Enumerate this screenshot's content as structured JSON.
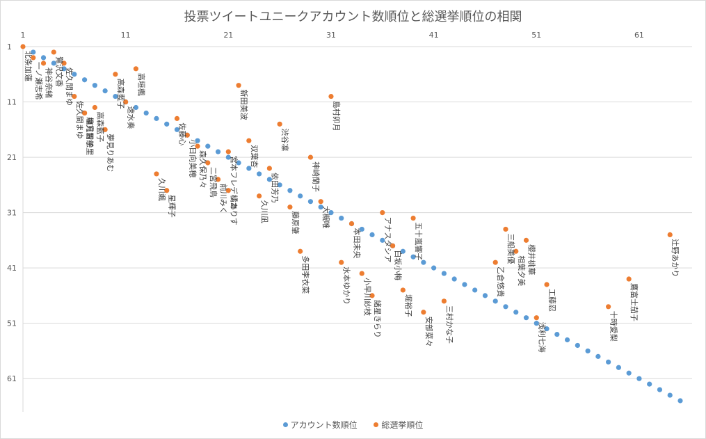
{
  "chart_data": {
    "type": "scatter",
    "title": "投票ツイートユニークアカウント数順位と総選挙順位の相関",
    "xlabel": "",
    "ylabel": "",
    "xlim": [
      1,
      65
    ],
    "ylim": [
      1,
      65
    ],
    "x_ticks": [
      1,
      11,
      21,
      31,
      41,
      51,
      61
    ],
    "y_ticks": [
      1,
      11,
      21,
      31,
      41,
      51,
      61
    ],
    "y_reversed": true,
    "x_axis_position": "top",
    "grid": "horizontal",
    "legend_position": "bottom",
    "colors": {
      "account": "#5b9bd5",
      "election": "#ed7d31"
    },
    "series": [
      {
        "name": "アカウント数順位",
        "points": [
          [
            2,
            2
          ],
          [
            3,
            3
          ],
          [
            4,
            4
          ],
          [
            5,
            5
          ],
          [
            6,
            6
          ],
          [
            7,
            7
          ],
          [
            8,
            8
          ],
          [
            9,
            9
          ],
          [
            10,
            10
          ],
          [
            11,
            11
          ],
          [
            12,
            12
          ],
          [
            13,
            13
          ],
          [
            14,
            14
          ],
          [
            15,
            15
          ],
          [
            16,
            16
          ],
          [
            17,
            17
          ],
          [
            18,
            18
          ],
          [
            19,
            19
          ],
          [
            20,
            20
          ],
          [
            21,
            21
          ],
          [
            22,
            22
          ],
          [
            23,
            23
          ],
          [
            24,
            24
          ],
          [
            25,
            25
          ],
          [
            26,
            26
          ],
          [
            27,
            27
          ],
          [
            28,
            28
          ],
          [
            29,
            29
          ],
          [
            30,
            30
          ],
          [
            31,
            31
          ],
          [
            32,
            32
          ],
          [
            33,
            33
          ],
          [
            34,
            34
          ],
          [
            35,
            35
          ],
          [
            36,
            36
          ],
          [
            37,
            37
          ],
          [
            38,
            38
          ],
          [
            39,
            39
          ],
          [
            40,
            40
          ],
          [
            41,
            41
          ],
          [
            42,
            42
          ],
          [
            43,
            43
          ],
          [
            44,
            44
          ],
          [
            45,
            45
          ],
          [
            46,
            46
          ],
          [
            47,
            47
          ],
          [
            48,
            48
          ],
          [
            49,
            49
          ],
          [
            50,
            50
          ],
          [
            51,
            51
          ],
          [
            52,
            52
          ],
          [
            53,
            53
          ],
          [
            54,
            54
          ],
          [
            55,
            55
          ],
          [
            56,
            56
          ],
          [
            57,
            57
          ],
          [
            58,
            58
          ],
          [
            59,
            59
          ],
          [
            60,
            60
          ],
          [
            61,
            61
          ],
          [
            62,
            62
          ],
          [
            63,
            63
          ],
          [
            64,
            64
          ],
          [
            65,
            65
          ]
        ]
      },
      {
        "name": "総選挙順位",
        "points": [
          {
            "x": 1,
            "y": 1,
            "label": "北条加蓮"
          },
          {
            "x": 2,
            "y": 3,
            "label": "一ノ瀬志希"
          },
          {
            "x": 3,
            "y": 4,
            "label": "神谷奈緒"
          },
          {
            "x": 4,
            "y": 2,
            "label": "鷺沢文香"
          },
          {
            "x": 5,
            "y": 4,
            "label": "佐久間まゆ"
          },
          {
            "x": 6,
            "y": 10,
            "label": "佐久間まゆ"
          },
          {
            "x": 7,
            "y": 13,
            "label": "緒方智絵里"
          },
          {
            "x": 7,
            "y": 13,
            "label": "塩見周子"
          },
          {
            "x": 8,
            "y": 12,
            "label": "高森藍子"
          },
          {
            "x": 9,
            "y": 16,
            "label": "夢見りあむ"
          },
          {
            "x": 10,
            "y": 6,
            "label": "高森藍子"
          },
          {
            "x": 11,
            "y": 11,
            "label": "速水奏"
          },
          {
            "x": 12,
            "y": 5,
            "label": "高垣楓"
          },
          {
            "x": 14,
            "y": 24,
            "label": "久川颯"
          },
          {
            "x": 15,
            "y": 27,
            "label": "星輝子"
          },
          {
            "x": 16,
            "y": 14,
            "label": "佐藤心"
          },
          {
            "x": 17,
            "y": 17,
            "label": "小日向美穂"
          },
          {
            "x": 18,
            "y": 19,
            "label": "森久保乃々"
          },
          {
            "x": 19,
            "y": 22,
            "label": "二宮飛鳥"
          },
          {
            "x": 20,
            "y": 25,
            "label": "前川みく"
          },
          {
            "x": 21,
            "y": 27,
            "label": "橘ありす"
          },
          {
            "x": 21,
            "y": 20,
            "label": "宮本フレデリカ"
          },
          {
            "x": 22,
            "y": 8,
            "label": "新田美波"
          },
          {
            "x": 23,
            "y": 18,
            "label": "双葉杏"
          },
          {
            "x": 24,
            "y": 28,
            "label": "久川凪"
          },
          {
            "x": 25,
            "y": 23,
            "label": "依田芳乃"
          },
          {
            "x": 26,
            "y": 15,
            "label": "渋谷凛"
          },
          {
            "x": 27,
            "y": 30,
            "label": "藤原肇"
          },
          {
            "x": 28,
            "y": 38,
            "label": "多田李衣菜"
          },
          {
            "x": 29,
            "y": 21,
            "label": "神崎蘭子"
          },
          {
            "x": 30,
            "y": 29,
            "label": "大槻唯"
          },
          {
            "x": 31,
            "y": 10,
            "label": "島村卯月"
          },
          {
            "x": 32,
            "y": 40,
            "label": "水本ゆかり"
          },
          {
            "x": 33,
            "y": 33,
            "label": "本田未央"
          },
          {
            "x": 34,
            "y": 42,
            "label": "小早川紗枝"
          },
          {
            "x": 35,
            "y": 46,
            "label": "諸星きらり"
          },
          {
            "x": 36,
            "y": 31,
            "label": "アナスタシア"
          },
          {
            "x": 37,
            "y": 37,
            "label": "白坂小梅"
          },
          {
            "x": 38,
            "y": 45,
            "label": "堀裕子"
          },
          {
            "x": 39,
            "y": 32,
            "label": "五十嵐響子"
          },
          {
            "x": 40,
            "y": 49,
            "label": "安部菜々"
          },
          {
            "x": 42,
            "y": 47,
            "label": "三村かな子"
          },
          {
            "x": 47,
            "y": 40,
            "label": "乙倉悠貴"
          },
          {
            "x": 48,
            "y": 34,
            "label": "三船美優"
          },
          {
            "x": 49,
            "y": 38,
            "label": "相葉夕美"
          },
          {
            "x": 50,
            "y": 36,
            "label": "櫻井桃華"
          },
          {
            "x": 51,
            "y": 50,
            "label": "浅利七海"
          },
          {
            "x": 52,
            "y": 44,
            "label": "工藤忍"
          },
          {
            "x": 58,
            "y": 48,
            "label": "十時愛梨"
          },
          {
            "x": 60,
            "y": 43,
            "label": "鷹富士茄子"
          },
          {
            "x": 64,
            "y": 35,
            "label": "辻野あかり"
          }
        ]
      }
    ]
  }
}
